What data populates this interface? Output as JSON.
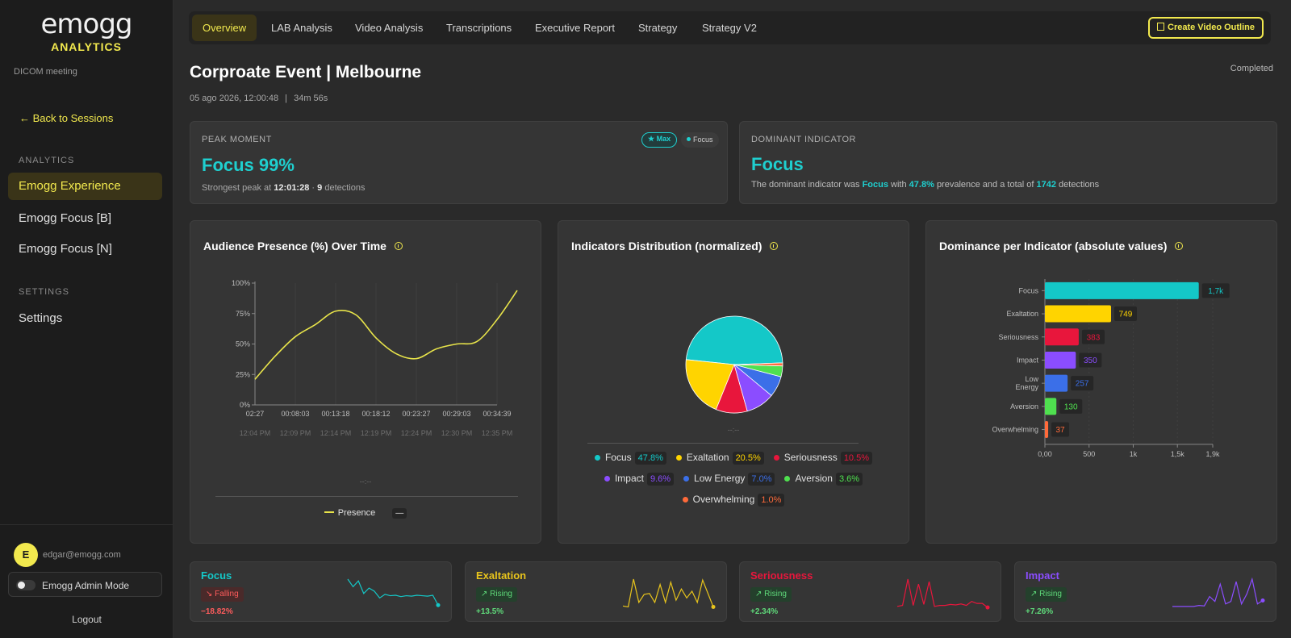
{
  "sidebar": {
    "brand_wordmark": "emogg",
    "brand_sub": "ANALYTICS",
    "meeting": "DICOM meeting",
    "back_label": "← Back to Sessions",
    "analytics_title": "ANALYTICS",
    "items": [
      {
        "label": "Emogg Experience",
        "active": true
      },
      {
        "label": "Emogg Focus [B]",
        "active": false
      },
      {
        "label": "Emogg Focus [N]",
        "active": false
      }
    ],
    "settings_title": "SETTINGS",
    "settings_label": "Settings",
    "avatar_letter": "E",
    "email": "edgar@emogg.com",
    "admin_label": "Emogg Admin Mode",
    "logout_label": "Logout"
  },
  "tabs": [
    "Overview",
    "LAB Analysis",
    "Video Analysis",
    "Transcriptions",
    "Executive Report",
    "Strategy",
    "Strategy V2"
  ],
  "active_tab": "Overview",
  "create_button": "Create Video Outline",
  "page": {
    "title": "Corproate Event | Melbourne",
    "date": "05 ago 2026, 12:00:48",
    "separator": "|",
    "duration": "34m 56s",
    "status": "Completed"
  },
  "peak": {
    "label": "PEAK MOMENT",
    "value": "Focus 99%",
    "badge_max": "★ Max",
    "badge_indicator": "Focus",
    "sub_prefix": "Strongest peak at",
    "time": "12:01:28",
    "dot": "·",
    "detections": "9",
    "sub_suffix": "detections"
  },
  "dominant": {
    "label": "DOMINANT INDICATOR",
    "value": "Focus",
    "text_1": "The dominant indicator was",
    "indicator": "Focus",
    "text_2": "with",
    "prevalence": "47.8%",
    "text_3": "prevalence and a total of",
    "total": "1742",
    "text_4": "detections"
  },
  "presence_chart": {
    "title": "Audience Presence (%) Over Time",
    "placeholder": "--:--",
    "legend_label": "Presence",
    "legend_extra": "—"
  },
  "distribution_chart": {
    "title": "Indicators Distribution (normalized)",
    "placeholder": "--:--"
  },
  "dominance_chart": {
    "title": "Dominance per Indicator (absolute values)"
  },
  "chart_data": [
    {
      "type": "line",
      "title": "Audience Presence (%) Over Time",
      "x_ticks": [
        "02:27",
        "00:08:03",
        "00:13:18",
        "00:18:12",
        "00:23:27",
        "00:29:03",
        "00:34:39"
      ],
      "x_ticks_secondary": [
        "12:04 PM",
        "12:09 PM",
        "12:14 PM",
        "12:19 PM",
        "12:24 PM",
        "12:30 PM",
        "12:35 PM"
      ],
      "y_ticks": [
        "0%",
        "25%",
        "50%",
        "75%",
        "100%"
      ],
      "ylim": [
        0,
        100
      ],
      "series": [
        {
          "name": "Presence",
          "color": "#e8e44a",
          "x": [
            0,
            0.5,
            1,
            1.5,
            2,
            2.5,
            3,
            3.5,
            4,
            4.5,
            5,
            5.5,
            6,
            6.5
          ],
          "y": [
            21,
            40,
            56,
            66,
            77,
            74,
            55,
            42,
            38,
            46,
            50,
            52,
            70,
            94
          ]
        }
      ]
    },
    {
      "type": "pie",
      "title": "Indicators Distribution (normalized)",
      "categories": [
        "Focus",
        "Exaltation",
        "Seriousness",
        "Impact",
        "Low Energy",
        "Aversion",
        "Overwhelming"
      ],
      "values": [
        47.8,
        20.5,
        10.5,
        9.6,
        7.0,
        3.6,
        1.0
      ],
      "labels": [
        "47.8%",
        "20.5%",
        "10.5%",
        "9.6%",
        "7.0%",
        "3.6%",
        "1.0%"
      ],
      "colors": [
        "#14c8c8",
        "#ffd400",
        "#e8163c",
        "#8b4dff",
        "#3b6fe8",
        "#4fe04f",
        "#ff6a3a"
      ]
    },
    {
      "type": "bar",
      "orientation": "horizontal",
      "title": "Dominance per Indicator (absolute values)",
      "categories": [
        "Focus",
        "Exaltation",
        "Seriousness",
        "Impact",
        "Low Energy",
        "Aversion",
        "Overwhelming"
      ],
      "values": [
        1742,
        749,
        383,
        350,
        257,
        130,
        37
      ],
      "labels": [
        "1,7k",
        "749",
        "383",
        "350",
        "257",
        "130",
        "37"
      ],
      "colors": [
        "#14c8c8",
        "#ffd400",
        "#e8163c",
        "#8b4dff",
        "#3b6fe8",
        "#4fe04f",
        "#ff6a3a"
      ],
      "x_ticks": [
        "0,00",
        "500",
        "1k",
        "1,5k",
        "1,9k"
      ],
      "xlim": [
        0,
        1900
      ]
    }
  ],
  "trends": [
    {
      "name": "Focus",
      "color": "#14c8c8",
      "direction": "fall",
      "badge": "Falling",
      "change": "−18.82%",
      "spark": [
        72,
        55,
        68,
        40,
        52,
        45,
        30,
        38,
        35,
        36,
        33,
        35,
        34,
        36,
        35,
        34,
        36,
        14
      ]
    },
    {
      "name": "Exaltation",
      "color": "#e8c41c",
      "direction": "rise",
      "badge": "Rising",
      "change": "+13.5%",
      "spark": [
        12,
        10,
        72,
        20,
        38,
        40,
        20,
        60,
        20,
        65,
        25,
        50,
        30,
        45,
        20,
        70,
        40,
        10
      ]
    },
    {
      "name": "Seriousness",
      "color": "#e8163c",
      "direction": "rise",
      "badge": "Rising",
      "change": "+2.34%",
      "spark": [
        10,
        12,
        65,
        12,
        55,
        14,
        60,
        10,
        12,
        12,
        14,
        13,
        15,
        12,
        20,
        16,
        16,
        8
      ]
    },
    {
      "name": "Impact",
      "color": "#8b4dff",
      "direction": "rise",
      "badge": "Rising",
      "change": "+7.26%",
      "spark": [
        10,
        10,
        10,
        10,
        10,
        12,
        11,
        30,
        20,
        55,
        15,
        20,
        60,
        15,
        35,
        65,
        15,
        22
      ]
    }
  ]
}
